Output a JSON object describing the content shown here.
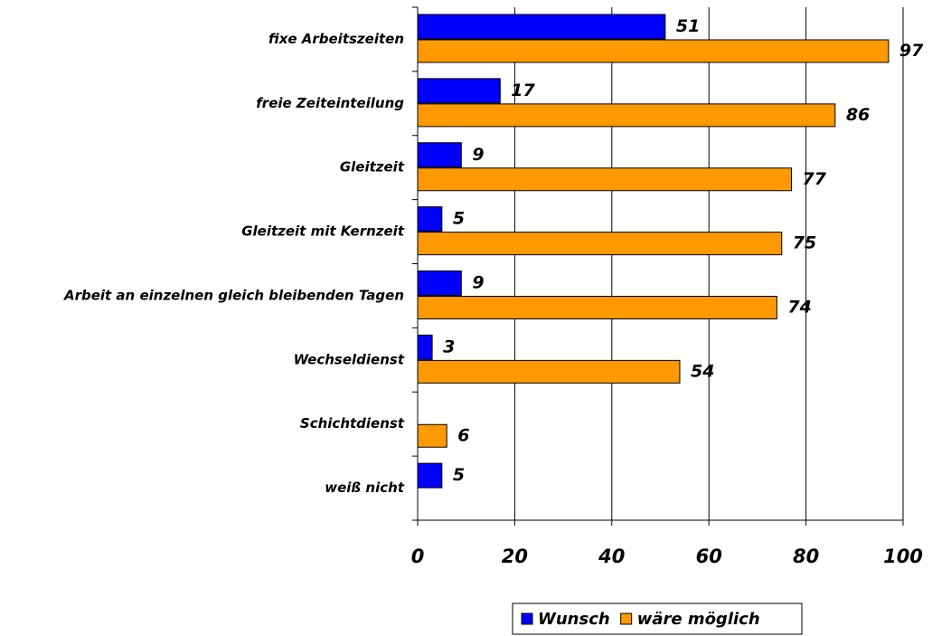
{
  "chart_data": {
    "type": "barh",
    "categories": [
      "fixe Arbeitszeiten",
      "freie Zeiteinteilung",
      "Gleitzeit",
      "Gleitzeit mit Kernzeit",
      "Arbeit an einzelnen gleich bleibenden Tagen",
      "Wechseldienst",
      "Schichtdienst",
      "weiß nicht"
    ],
    "series": [
      {
        "name": "Wunsch",
        "color": "#0000ff",
        "values": [
          51,
          17,
          9,
          5,
          9,
          3,
          null,
          5
        ]
      },
      {
        "name": "wäre möglich",
        "color": "#ff9900",
        "values": [
          97,
          86,
          77,
          75,
          74,
          54,
          6,
          null
        ]
      }
    ],
    "xlim": [
      0,
      100
    ],
    "xticks": [
      0,
      20,
      40,
      60,
      80,
      100
    ],
    "grid": true,
    "legend": "bottom"
  }
}
